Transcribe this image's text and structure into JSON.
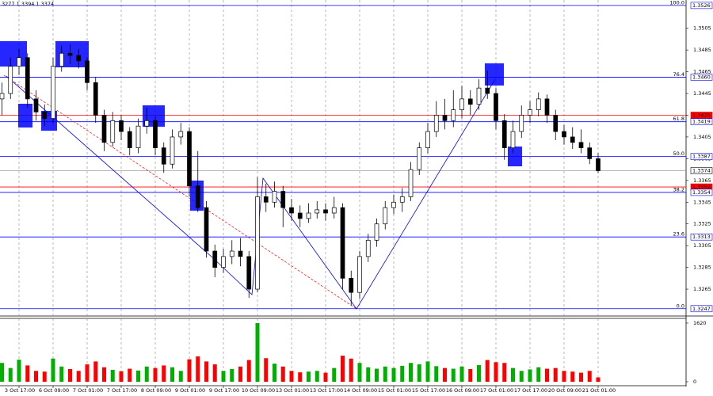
{
  "chart_data": [
    {
      "type": "candlestick",
      "header": "3277 1.3394 1.3374",
      "color": "#000000",
      "categories": [
        null,
        null,
        "3 Oct 17:00",
        null,
        null,
        null,
        "6 Oct 09:00",
        null,
        null,
        null,
        "7 Oct 01:00",
        null,
        null,
        null,
        "7 Oct 17:00",
        null,
        null,
        null,
        "8 Oct 09:00",
        null,
        null,
        null,
        "9 Oct 01:00",
        null,
        null,
        null,
        "9 Oct 17:00",
        null,
        null,
        null,
        "10 Oct 09:00",
        null,
        null,
        null,
        "13 Oct 01:00",
        null,
        null,
        null,
        "13 Oct 17:00",
        null,
        null,
        null,
        "14 Oct 09:00",
        null,
        null,
        null,
        "15 Oct 01:00",
        null,
        null,
        null,
        "15 Oct 17:00",
        null,
        null,
        null,
        "16 Oct 09:00",
        null,
        null,
        null,
        "17 Oct 01:00",
        null,
        null,
        null,
        "17 Oct 17:00",
        null,
        null,
        null,
        "20 Oct 09:00",
        null,
        null,
        null,
        "21 Oct 01:00"
      ],
      "open": [
        1.344,
        1.3445,
        1.347,
        1.3478,
        1.344,
        1.3428,
        1.3422,
        1.347,
        1.3482,
        1.348,
        1.3475,
        1.3455,
        1.3425,
        1.34,
        1.342,
        1.341,
        1.3395,
        1.3415,
        1.342,
        1.3395,
        1.338,
        1.3405,
        1.341,
        1.336,
        1.334,
        1.33,
        1.3285,
        1.3295,
        1.33,
        1.3295,
        1.3265,
        1.335,
        1.3345,
        1.3355,
        1.334,
        1.3335,
        1.333,
        1.3335,
        1.3338,
        1.3335,
        1.334,
        1.3275,
        1.3262,
        1.3295,
        1.331,
        1.3325,
        1.334,
        1.3345,
        1.335,
        1.3375,
        1.3395,
        1.341,
        1.3425,
        1.342,
        1.343,
        1.344,
        1.3435,
        1.345,
        1.3445,
        1.342,
        1.3395,
        1.341,
        1.3425,
        1.343,
        1.344,
        1.3425,
        1.341,
        1.3405,
        1.34,
        1.3395,
        1.3385
      ],
      "high": [
        1.3455,
        1.3478,
        1.3486,
        1.3482,
        1.3448,
        1.3435,
        1.3478,
        1.3489,
        1.349,
        1.3486,
        1.3478,
        1.346,
        1.343,
        1.3428,
        1.3425,
        1.3414,
        1.3422,
        1.3432,
        1.3424,
        1.34,
        1.3412,
        1.3418,
        1.3414,
        1.3392,
        1.3346,
        1.3306,
        1.3302,
        1.331,
        1.3312,
        1.33,
        1.3368,
        1.3362,
        1.3364,
        1.336,
        1.3348,
        1.3342,
        1.3344,
        1.3346,
        1.3344,
        1.335,
        1.3344,
        1.3282,
        1.33,
        1.3316,
        1.333,
        1.3346,
        1.3352,
        1.3358,
        1.3382,
        1.34,
        1.3418,
        1.3438,
        1.344,
        1.3448,
        1.3452,
        1.3448,
        1.3458,
        1.3466,
        1.345,
        1.3426,
        1.342,
        1.3434,
        1.3438,
        1.3446,
        1.3444,
        1.343,
        1.3416,
        1.3414,
        1.3412,
        1.34,
        1.339
      ],
      "low": [
        1.3425,
        1.344,
        1.3462,
        1.3432,
        1.342,
        1.3415,
        1.3418,
        1.3465,
        1.3472,
        1.3468,
        1.3448,
        1.3418,
        1.3392,
        1.3396,
        1.3402,
        1.3388,
        1.339,
        1.3408,
        1.3388,
        1.3372,
        1.3376,
        1.3398,
        1.335,
        1.3336,
        1.3294,
        1.3276,
        1.328,
        1.3288,
        1.3286,
        1.3257,
        1.3262,
        1.3336,
        1.334,
        1.3322,
        1.3328,
        1.3322,
        1.3326,
        1.333,
        1.3328,
        1.333,
        1.3265,
        1.325,
        1.3256,
        1.329,
        1.3304,
        1.332,
        1.3334,
        1.3336,
        1.3346,
        1.337,
        1.339,
        1.3405,
        1.3412,
        1.3414,
        1.3422,
        1.3425,
        1.343,
        1.344,
        1.3412,
        1.3384,
        1.339,
        1.3404,
        1.3418,
        1.3424,
        1.3418,
        1.3402,
        1.3398,
        1.3394,
        1.339,
        1.338,
        1.3372
      ],
      "close": [
        1.3445,
        1.347,
        1.3478,
        1.344,
        1.3428,
        1.3422,
        1.347,
        1.3482,
        1.348,
        1.3475,
        1.3455,
        1.3425,
        1.34,
        1.342,
        1.341,
        1.3395,
        1.3415,
        1.342,
        1.3395,
        1.338,
        1.3405,
        1.341,
        1.336,
        1.334,
        1.33,
        1.3285,
        1.3295,
        1.33,
        1.3295,
        1.3265,
        1.335,
        1.3345,
        1.3355,
        1.334,
        1.3335,
        1.333,
        1.3335,
        1.3338,
        1.3335,
        1.334,
        1.3275,
        1.3262,
        1.3295,
        1.331,
        1.3325,
        1.334,
        1.3345,
        1.335,
        1.3375,
        1.3395,
        1.341,
        1.3425,
        1.342,
        1.343,
        1.344,
        1.3435,
        1.345,
        1.3445,
        1.342,
        1.3395,
        1.341,
        1.3425,
        1.343,
        1.344,
        1.3425,
        1.341,
        1.3405,
        1.34,
        1.3395,
        1.3385,
        1.3374
      ],
      "ylim": [
        1.3241,
        1.3531
      ],
      "yticks": [
        1.3265,
        1.3285,
        1.3305,
        1.3325,
        1.3345,
        1.3365,
        1.3385,
        1.3405,
        1.3425,
        1.3445,
        1.3465,
        1.3485,
        1.3505
      ],
      "grid": true,
      "levels": [
        {
          "value": 1.3526,
          "label": "1.3526",
          "fib": "100.0",
          "color": "#0000ff"
        },
        {
          "value": 1.346,
          "label": "1.3460",
          "fib": "76.4",
          "color": "#0000ff"
        },
        {
          "value": 1.3425,
          "label": "1.3425",
          "color": "#ff0000"
        },
        {
          "value": 1.3419,
          "label": "1.3419",
          "fib": "61.8",
          "color": "#0000ff"
        },
        {
          "value": 1.3387,
          "label": "1.3387",
          "fib": "50.0",
          "color": "#0000ff"
        },
        {
          "value": 1.3374,
          "label": "1.3374",
          "color": "#a0a0a0"
        },
        {
          "value": 1.3359,
          "label": "1.3359",
          "color": "#ff0000"
        },
        {
          "value": 1.3354,
          "label": "1.3354",
          "fib": "38.2",
          "color": "#0000ff"
        },
        {
          "value": 1.3313,
          "label": "1.3313",
          "fib": "23.6",
          "color": "#0000ff"
        },
        {
          "value": 1.3247,
          "label": "1.3247",
          "fib": "0.0",
          "color": "#0000ff"
        }
      ]
    },
    {
      "type": "bar",
      "up_color": "#00b000",
      "down_color": "#ff0000",
      "values": [
        520,
        380,
        610,
        450,
        300,
        280,
        640,
        420,
        350,
        300,
        480,
        560,
        400,
        330,
        290,
        360,
        310,
        420,
        380,
        450,
        400,
        300,
        620,
        700,
        560,
        480,
        300,
        350,
        420,
        600,
        1620,
        650,
        500,
        420,
        300,
        260,
        280,
        300,
        250,
        380,
        720,
        640,
        520,
        400,
        360,
        420,
        380,
        440,
        520,
        480,
        560,
        430,
        380,
        360,
        420,
        350,
        460,
        600,
        540,
        520,
        380,
        300,
        340,
        400,
        360,
        380,
        300,
        280,
        250,
        300,
        120
      ],
      "ylim": [
        0,
        1750
      ],
      "yticks": [
        0,
        1620
      ]
    }
  ]
}
